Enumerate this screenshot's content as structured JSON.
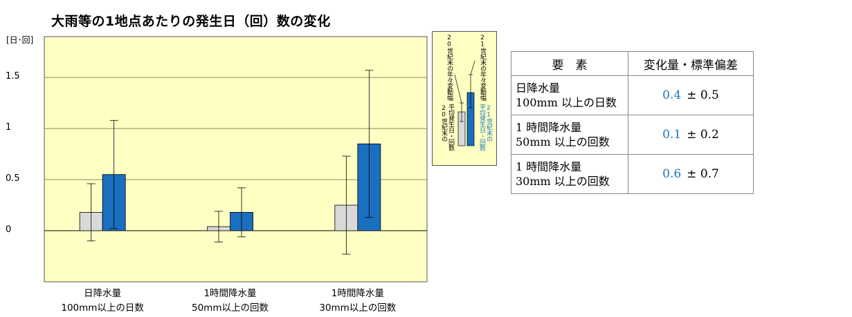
{
  "title": "大雨等の1地点あたりの発生日（回）数の変化",
  "chart_data": {
    "type": "bar",
    "unit_label": "[日･回]",
    "ylim": [
      -0.5,
      1.9
    ],
    "yticks": [
      {
        "value": 1.5,
        "label": "1.5"
      },
      {
        "value": 1,
        "label": "1"
      },
      {
        "value": 0.5,
        "label": "0.5"
      },
      {
        "value": 0,
        "label": "0"
      }
    ],
    "grid": true,
    "categories": [
      {
        "line1": "日降水量",
        "line2": "100mm以上の日数"
      },
      {
        "line1": "1時間降水量",
        "line2": "50mm以上の回数"
      },
      {
        "line1": "1時間降水量",
        "line2": "30mm以上の回数"
      }
    ],
    "series": [
      {
        "color": "#d9d9d9",
        "values": [
          0.18,
          0.04,
          0.25
        ],
        "err_low": [
          -0.1,
          -0.11,
          -0.23
        ],
        "err_high": [
          0.46,
          0.19,
          0.73
        ]
      },
      {
        "color": "#1a6fc0",
        "values": [
          0.55,
          0.18,
          0.85
        ],
        "err_low": [
          0.02,
          -0.06,
          0.13
        ],
        "err_high": [
          1.08,
          0.42,
          1.57
        ]
      }
    ]
  },
  "legend": {
    "top_20": "20世紀末の年々変動幅",
    "top_21": "21世紀末の年々変動幅",
    "bottom_20_a": "平均発生日・回数",
    "bottom_20_b": "20世紀末の",
    "bottom_21_a": "21世紀末の",
    "bottom_21_b": "平均発生日・回数"
  },
  "table": {
    "header_element": "要　素",
    "header_change": "変化量・標準偏差",
    "rows": [
      {
        "line1": "日降水量",
        "line2": "100mm 以上の日数",
        "value": "0.4",
        "sd": "± 0.5"
      },
      {
        "line1": "1 時間降水量",
        "line2": "50mm 以上の回数",
        "value": "0.1",
        "sd": "± 0.2"
      },
      {
        "line1": "1 時間降水量",
        "line2": "30mm 以上の回数",
        "value": "0.6",
        "sd": "± 0.7"
      }
    ]
  }
}
